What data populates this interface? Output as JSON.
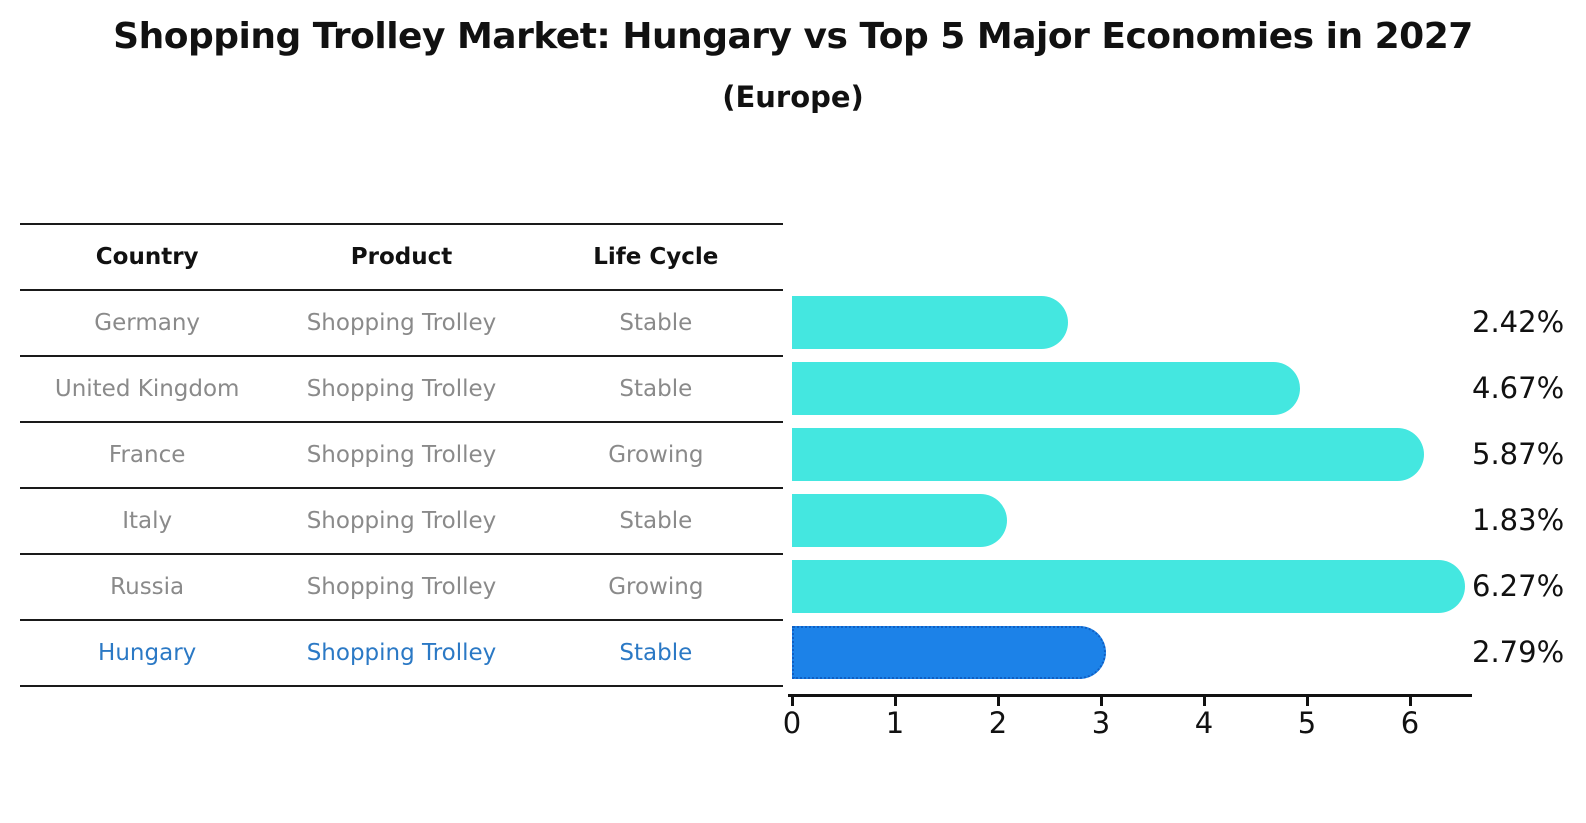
{
  "title": "Shopping Trolley Market: Hungary vs Top 5 Major Economies in 2027",
  "subtitle": "(Europe)",
  "colors": {
    "bar": "#44e7e0",
    "highlight_bar": "#1c82e8",
    "highlight_border": "#0f5fc4",
    "highlight_text": "#2b79c5",
    "row_text": "#8a8a8a",
    "axis": "#111111"
  },
  "table": {
    "headers": [
      "Country",
      "Product",
      "Life Cycle"
    ],
    "rows": [
      {
        "country": "Germany",
        "product": "Shopping Trolley",
        "life_cycle": "Stable",
        "highlight": false
      },
      {
        "country": "United Kingdom",
        "product": "Shopping Trolley",
        "life_cycle": "Stable",
        "highlight": false
      },
      {
        "country": "France",
        "product": "Shopping Trolley",
        "life_cycle": "Growing",
        "highlight": false
      },
      {
        "country": "Italy",
        "product": "Shopping Trolley",
        "life_cycle": "Stable",
        "highlight": false
      },
      {
        "country": "Russia",
        "product": "Shopping Trolley",
        "life_cycle": "Growing",
        "highlight": false
      },
      {
        "country": "Hungary",
        "product": "Shopping Trolley",
        "life_cycle": "Stable",
        "highlight": true
      }
    ]
  },
  "chart_data": {
    "type": "bar",
    "orientation": "horizontal",
    "title": "Shopping Trolley Market: Hungary vs Top 5 Major Economies in 2027 (Europe)",
    "categories": [
      "Germany",
      "United Kingdom",
      "France",
      "Italy",
      "Russia",
      "Hungary"
    ],
    "values": [
      2.42,
      4.67,
      5.87,
      1.83,
      6.27,
      2.79
    ],
    "value_labels": [
      "2.42%",
      "4.67%",
      "5.87%",
      "1.83%",
      "6.27%",
      "2.79%"
    ],
    "highlight_category": "Hungary",
    "x_ticks": [
      0,
      1,
      2,
      3,
      4,
      5,
      6
    ],
    "x_tick_labels": [
      "0",
      "1",
      "2",
      "3",
      "4",
      "5",
      "6"
    ],
    "xlim": [
      0,
      6.6
    ],
    "xlabel": "",
    "ylabel": "",
    "grid": false,
    "legend": false
  }
}
